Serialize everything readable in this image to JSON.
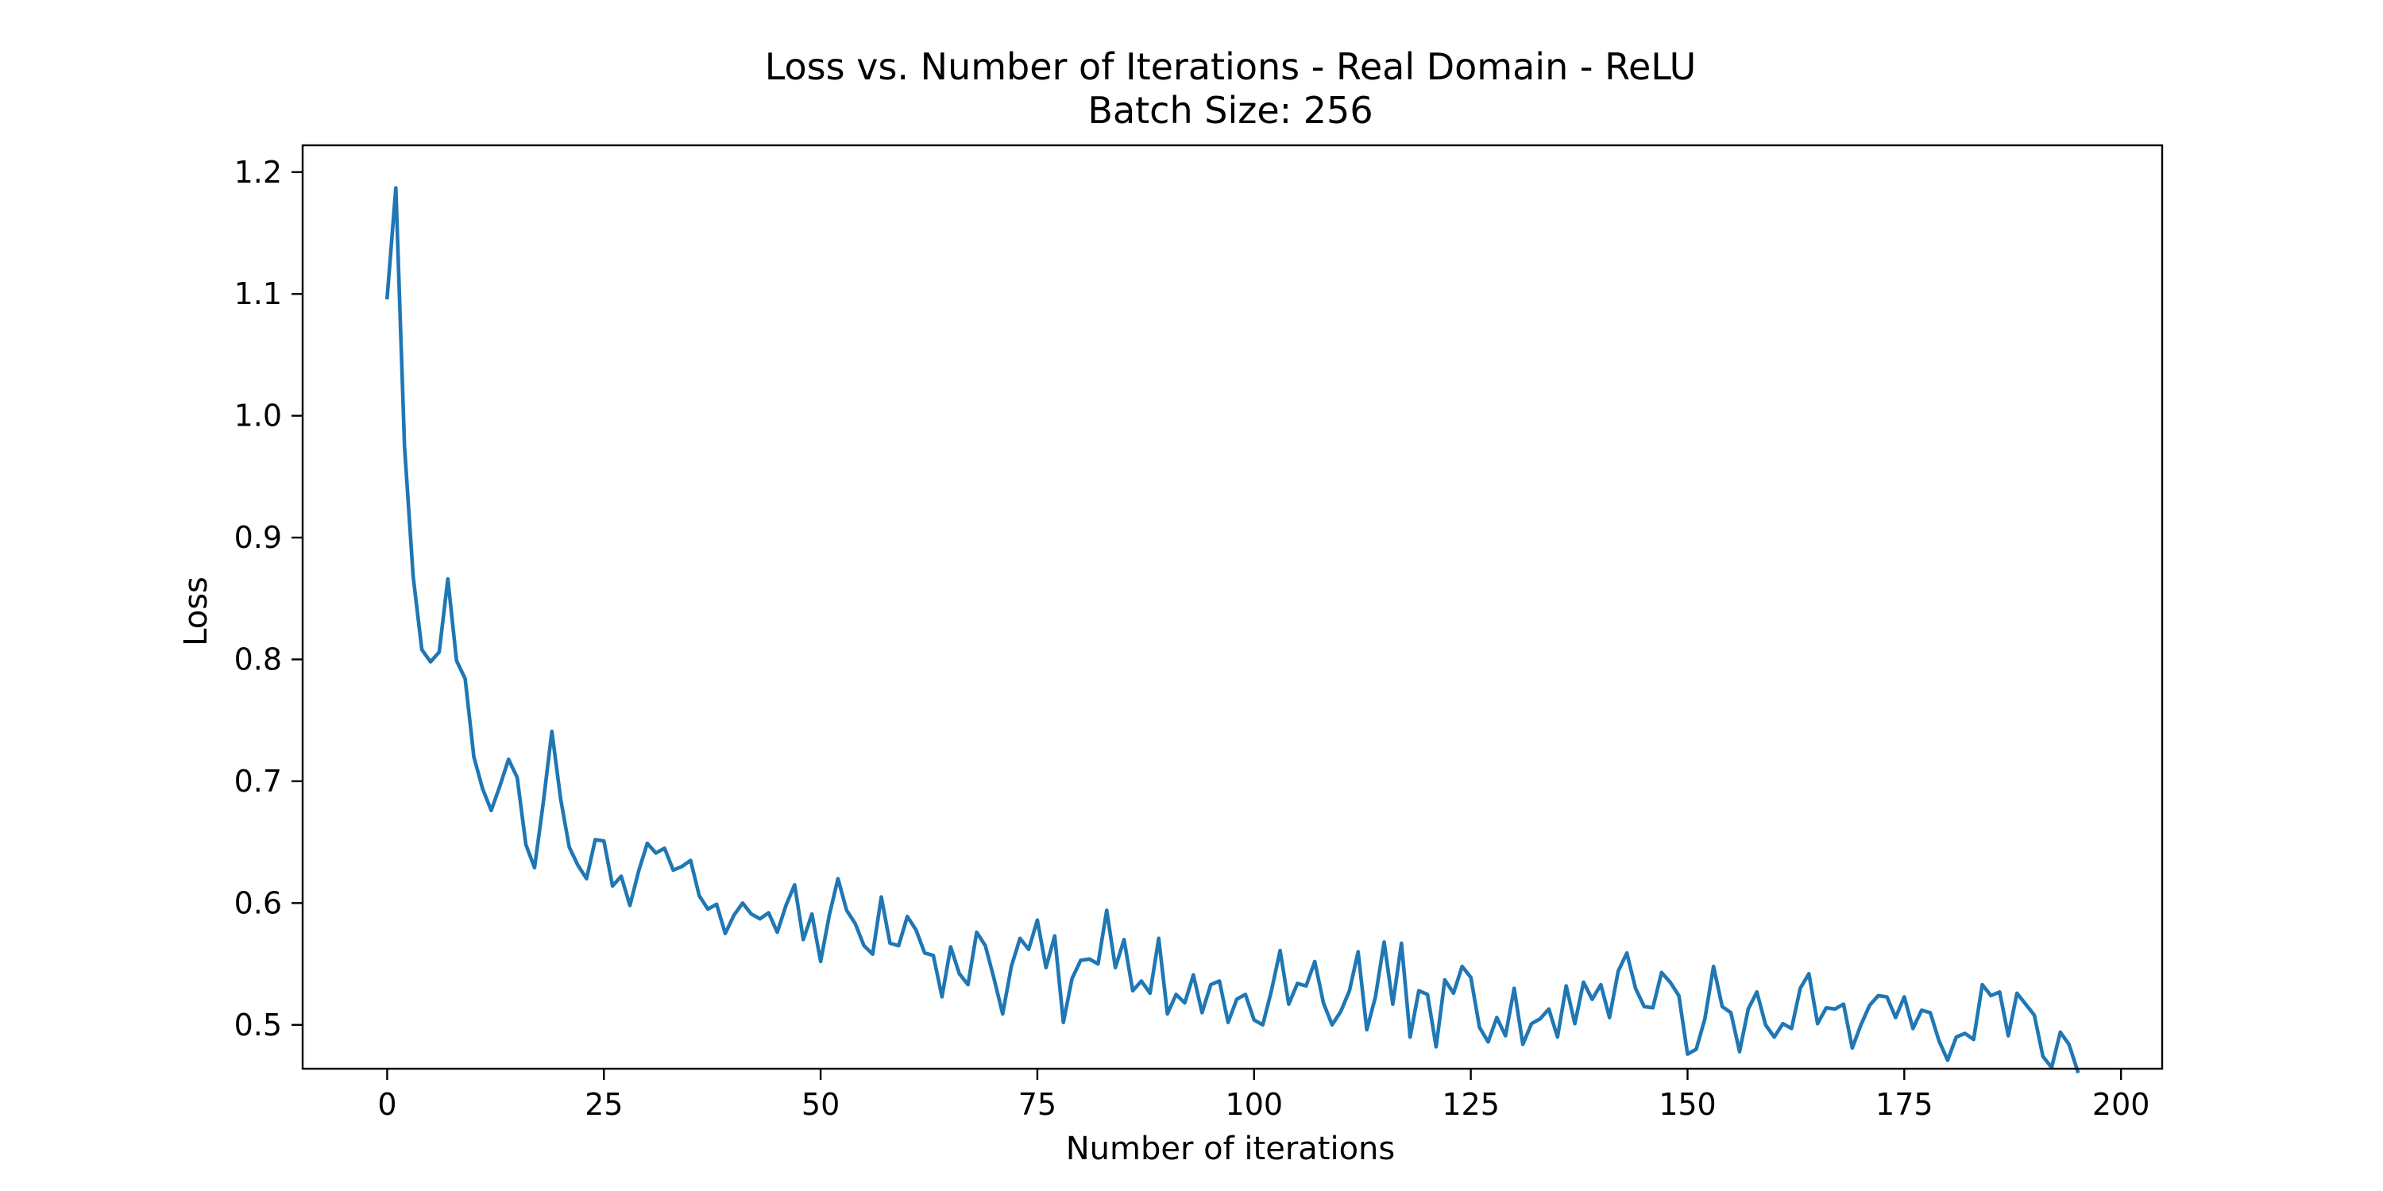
{
  "chart_data": {
    "type": "line",
    "title": "Loss vs. Number of Iterations - Real Domain - ReLU",
    "subtitle": "Batch Size: 256",
    "xlabel": "Number of iterations",
    "ylabel": "Loss",
    "xlim": [
      -9.75,
      204.75
    ],
    "ylim": [
      0.464,
      1.222
    ],
    "x_ticks": [
      0,
      25,
      50,
      75,
      100,
      125,
      150,
      175,
      200
    ],
    "x_tick_labels": [
      "0",
      "25",
      "50",
      "75",
      "100",
      "125",
      "150",
      "175",
      "200"
    ],
    "y_ticks": [
      0.5,
      0.6,
      0.7,
      0.8,
      0.9,
      1.0,
      1.1,
      1.2
    ],
    "y_tick_labels": [
      "0.5",
      "0.6",
      "0.7",
      "0.8",
      "0.9",
      "1.0",
      "1.1",
      "1.2"
    ],
    "grid": false,
    "line_color": "#1f77b4",
    "series": [
      {
        "x_start": 0,
        "x_step": 1,
        "values": [
          1.097,
          1.187,
          0.975,
          0.868,
          0.808,
          0.798,
          0.806,
          0.866,
          0.799,
          0.784,
          0.72,
          0.694,
          0.676,
          0.696,
          0.718,
          0.703,
          0.648,
          0.629,
          0.682,
          0.741,
          0.686,
          0.646,
          0.631,
          0.62,
          0.652,
          0.651,
          0.614,
          0.622,
          0.598,
          0.626,
          0.649,
          0.641,
          0.645,
          0.627,
          0.63,
          0.635,
          0.606,
          0.595,
          0.599,
          0.575,
          0.59,
          0.6,
          0.591,
          0.587,
          0.592,
          0.576,
          0.598,
          0.615,
          0.57,
          0.591,
          0.552,
          0.59,
          0.62,
          0.594,
          0.583,
          0.565,
          0.558,
          0.605,
          0.567,
          0.565,
          0.589,
          0.578,
          0.559,
          0.557,
          0.523,
          0.564,
          0.542,
          0.533,
          0.576,
          0.565,
          0.538,
          0.509,
          0.548,
          0.571,
          0.562,
          0.586,
          0.547,
          0.573,
          0.502,
          0.538,
          0.553,
          0.554,
          0.55,
          0.594,
          0.547,
          0.57,
          0.528,
          0.536,
          0.526,
          0.571,
          0.509,
          0.525,
          0.518,
          0.541,
          0.51,
          0.533,
          0.536,
          0.502,
          0.521,
          0.525,
          0.504,
          0.5,
          0.528,
          0.561,
          0.517,
          0.534,
          0.532,
          0.552,
          0.518,
          0.5,
          0.511,
          0.528,
          0.56,
          0.496,
          0.523,
          0.568,
          0.517,
          0.567,
          0.49,
          0.528,
          0.525,
          0.482,
          0.537,
          0.526,
          0.548,
          0.539,
          0.498,
          0.486,
          0.506,
          0.491,
          0.53,
          0.484,
          0.501,
          0.505,
          0.513,
          0.49,
          0.532,
          0.501,
          0.535,
          0.521,
          0.533,
          0.506,
          0.544,
          0.559,
          0.53,
          0.515,
          0.514,
          0.543,
          0.535,
          0.524,
          0.476,
          0.48,
          0.505,
          0.548,
          0.515,
          0.51,
          0.478,
          0.513,
          0.527,
          0.5,
          0.49,
          0.501,
          0.497,
          0.53,
          0.542,
          0.501,
          0.514,
          0.513,
          0.517,
          0.481,
          0.5,
          0.516,
          0.524,
          0.523,
          0.506,
          0.523,
          0.497,
          0.512,
          0.51,
          0.487,
          0.471,
          0.49,
          0.493,
          0.488,
          0.533,
          0.524,
          0.527,
          0.491,
          0.526,
          0.517,
          0.508,
          0.474,
          0.465,
          0.494,
          0.484,
          0.462
        ]
      }
    ]
  }
}
